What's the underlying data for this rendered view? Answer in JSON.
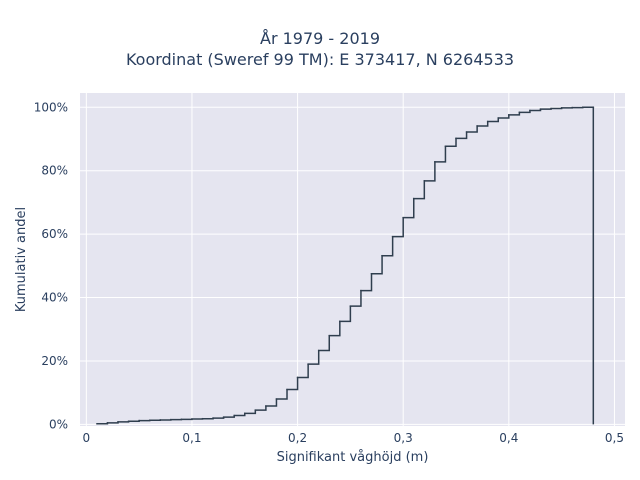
{
  "chart_data": {
    "type": "line",
    "subtype": "step (cumulative distribution)",
    "title_line1": "År 1979 - 2019",
    "title_line2": "Koordinat (Sweref 99 TM): E 373417, N 6264533",
    "xlabel": "Signifikant våghöjd (m)",
    "ylabel": "Kumulativ andel",
    "xlim": [
      -0.006,
      0.51
    ],
    "ylim": [
      -0.005,
      1.045
    ],
    "x_ticks": [
      0,
      0.1,
      0.2,
      0.3,
      0.4,
      0.5
    ],
    "x_tick_labels": [
      "0",
      "0,1",
      "0,2",
      "0,3",
      "0,4",
      "0,5"
    ],
    "y_ticks": [
      0,
      0.2,
      0.4,
      0.6,
      0.8,
      1.0
    ],
    "y_tick_labels": [
      "0%",
      "20%",
      "40%",
      "60%",
      "80%",
      "100%"
    ],
    "grid": true,
    "colors": {
      "plot_background": "#e5e5f0",
      "grid": "#ffffff",
      "line": "#2f3e4e",
      "text": "#2a3f5f"
    },
    "series": [
      {
        "x": [
          0.01,
          0.02,
          0.03,
          0.04,
          0.05,
          0.06,
          0.07,
          0.08,
          0.09,
          0.1,
          0.11,
          0.12,
          0.13,
          0.14,
          0.15,
          0.16,
          0.17,
          0.18,
          0.19,
          0.2,
          0.21,
          0.22,
          0.23,
          0.24,
          0.25,
          0.26,
          0.27,
          0.28,
          0.29,
          0.3,
          0.31,
          0.32,
          0.33,
          0.34,
          0.35,
          0.36,
          0.37,
          0.38,
          0.39,
          0.4,
          0.41,
          0.42,
          0.43,
          0.44,
          0.45,
          0.46,
          0.47,
          0.48
        ],
        "y": [
          0.002,
          0.005,
          0.008,
          0.01,
          0.012,
          0.013,
          0.014,
          0.015,
          0.016,
          0.017,
          0.018,
          0.02,
          0.023,
          0.028,
          0.035,
          0.045,
          0.058,
          0.08,
          0.11,
          0.148,
          0.19,
          0.233,
          0.28,
          0.325,
          0.373,
          0.422,
          0.475,
          0.532,
          0.592,
          0.652,
          0.712,
          0.768,
          0.828,
          0.877,
          0.902,
          0.922,
          0.941,
          0.955,
          0.966,
          0.976,
          0.984,
          0.99,
          0.994,
          0.996,
          0.998,
          0.999,
          1.0,
          1.0
        ],
        "drop_to_zero_at_end": true
      }
    ]
  }
}
